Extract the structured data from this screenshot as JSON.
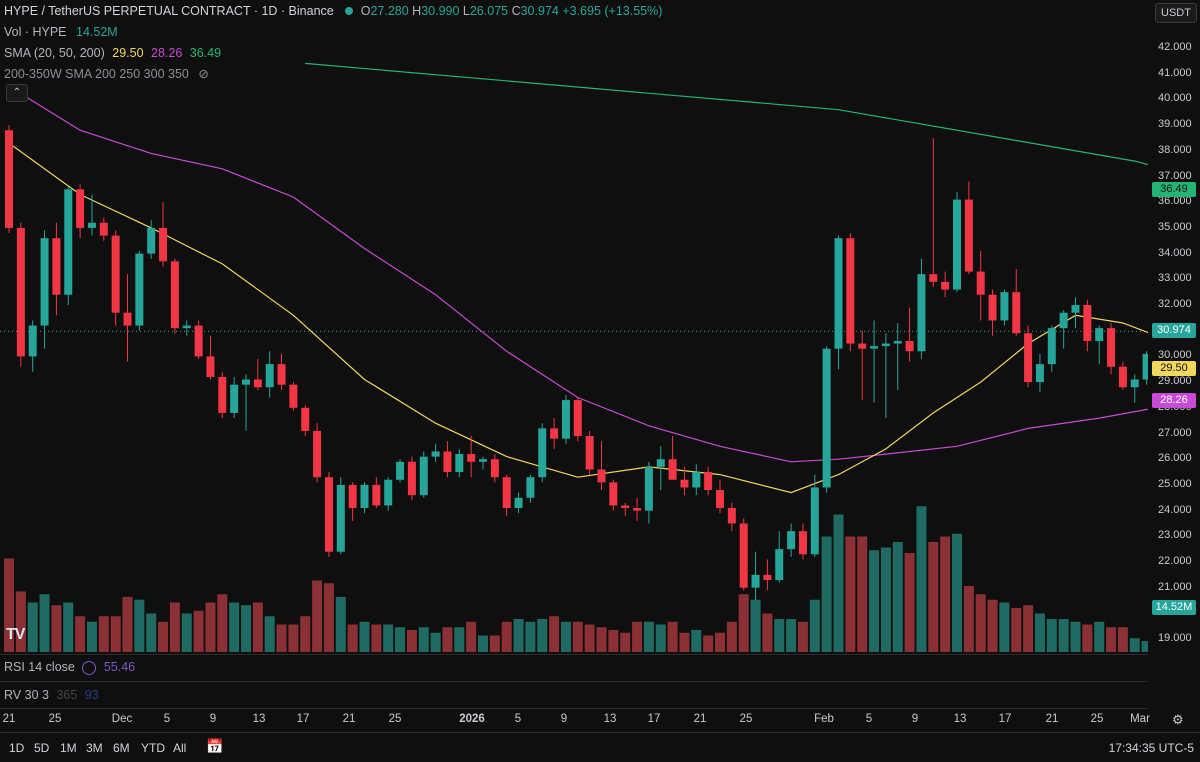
{
  "header": {
    "title": "HYPE / TetherUS PERPETUAL CONTRACT · 1D · Binance",
    "open_label": "O",
    "open": "27.280",
    "high_label": "H",
    "high": "30.990",
    "low_label": "L",
    "low": "26.075",
    "close_label": "C",
    "close": "30.974",
    "change": "+3.695 (+13.55%)",
    "currency": "USDT"
  },
  "indicators": {
    "vol_label": "Vol · HYPE",
    "vol_value": "14.52M",
    "sma_label": "SMA (20, 50, 200)",
    "sma20": "29.50",
    "sma50": "28.26",
    "sma200": "36.49",
    "sma_hidden_label": "200-350W SMA 200 250 300 350",
    "rsi_label": "RSI 14 close",
    "rsi_value": "55.46",
    "rv_label": "RV 30 3",
    "rv_extra": "365",
    "rv_extra2": "93"
  },
  "colors": {
    "up": "#26a69a",
    "down": "#f23645",
    "sma20": "#f0d75e",
    "sma50": "#c94ad6",
    "sma200": "#22b573"
  },
  "price_axis": {
    "ticks": [
      "42.000",
      "41.000",
      "40.000",
      "39.000",
      "38.000",
      "37.000",
      "36.000",
      "35.000",
      "34.000",
      "33.000",
      "32.000",
      "31.000",
      "30.000",
      "29.000",
      "28.000",
      "27.000",
      "26.000",
      "25.000",
      "24.000",
      "23.000",
      "22.000",
      "21.000",
      "20.000",
      "19.000"
    ],
    "last_price": "30.974",
    "sma20_badge": "29.50",
    "sma50_badge": "28.26",
    "sma200_badge": "36.49",
    "vol_badge": "14.52M"
  },
  "time_axis": {
    "labels": [
      "21",
      "25",
      "Dec",
      "5",
      "9",
      "13",
      "17",
      "21",
      "25",
      "2026",
      "5",
      "9",
      "13",
      "17",
      "21",
      "25",
      "Feb",
      "5",
      "9",
      "13",
      "17",
      "21",
      "25",
      "Mar"
    ],
    "timezone": "17:34:35 UTC-5"
  },
  "timeframes": [
    "1D",
    "5D",
    "1M",
    "3M",
    "6M",
    "YTD",
    "All"
  ],
  "logo": "TV",
  "chart_data": {
    "type": "candlestick",
    "interval": "1D",
    "ylim": [
      18.5,
      42.5
    ],
    "ohlc": [
      [
        38.8,
        39.0,
        34.8,
        35.0
      ],
      [
        35.0,
        35.2,
        29.6,
        30.0
      ],
      [
        30.0,
        31.4,
        29.4,
        31.2
      ],
      [
        31.2,
        34.9,
        30.3,
        34.6
      ],
      [
        34.6,
        35.2,
        31.6,
        32.4
      ],
      [
        32.4,
        36.6,
        32.0,
        36.5
      ],
      [
        36.5,
        36.7,
        34.6,
        35.0
      ],
      [
        35.0,
        36.3,
        34.7,
        35.2
      ],
      [
        35.2,
        35.4,
        34.5,
        34.7
      ],
      [
        34.7,
        34.9,
        31.2,
        31.7
      ],
      [
        31.7,
        33.2,
        29.8,
        31.2
      ],
      [
        31.2,
        34.1,
        31.0,
        34.0
      ],
      [
        34.0,
        35.3,
        33.8,
        35.0
      ],
      [
        35.0,
        36.0,
        33.5,
        33.7
      ],
      [
        33.7,
        33.8,
        30.9,
        31.1
      ],
      [
        31.1,
        31.4,
        30.8,
        31.2
      ],
      [
        31.2,
        31.4,
        29.9,
        30.0
      ],
      [
        30.0,
        30.8,
        29.1,
        29.2
      ],
      [
        29.2,
        29.4,
        27.6,
        27.8
      ],
      [
        27.8,
        29.2,
        27.6,
        28.9
      ],
      [
        28.9,
        29.3,
        27.1,
        29.1
      ],
      [
        29.1,
        29.9,
        28.7,
        28.8
      ],
      [
        28.8,
        30.2,
        28.4,
        29.7
      ],
      [
        29.7,
        30.1,
        28.7,
        28.9
      ],
      [
        28.9,
        29.0,
        27.9,
        28.0
      ],
      [
        28.0,
        28.1,
        26.9,
        27.1
      ],
      [
        27.1,
        27.4,
        25.1,
        25.3
      ],
      [
        25.3,
        25.5,
        22.2,
        22.4
      ],
      [
        22.4,
        25.3,
        22.3,
        25.0
      ],
      [
        25.0,
        25.1,
        23.6,
        24.1
      ],
      [
        24.1,
        25.1,
        23.9,
        25.0
      ],
      [
        25.0,
        25.3,
        24.1,
        24.2
      ],
      [
        24.2,
        25.3,
        24.0,
        25.2
      ],
      [
        25.2,
        26.0,
        25.1,
        25.9
      ],
      [
        25.9,
        26.1,
        24.4,
        24.6
      ],
      [
        24.6,
        26.3,
        24.5,
        26.1
      ],
      [
        26.1,
        26.6,
        25.9,
        26.3
      ],
      [
        26.3,
        26.7,
        25.3,
        25.5
      ],
      [
        25.5,
        26.4,
        25.3,
        26.2
      ],
      [
        26.2,
        26.9,
        25.3,
        25.9
      ],
      [
        25.9,
        26.1,
        25.6,
        26.0
      ],
      [
        26.0,
        26.2,
        25.1,
        25.3
      ],
      [
        25.3,
        25.4,
        23.8,
        24.1
      ],
      [
        24.1,
        24.7,
        23.9,
        24.5
      ],
      [
        24.5,
        25.4,
        24.3,
        25.3
      ],
      [
        25.3,
        27.4,
        25.1,
        27.2
      ],
      [
        27.2,
        27.6,
        26.4,
        26.8
      ],
      [
        26.8,
        28.5,
        26.6,
        28.3
      ],
      [
        28.3,
        28.4,
        26.7,
        26.9
      ],
      [
        26.9,
        27.1,
        25.4,
        25.6
      ],
      [
        25.6,
        26.7,
        24.8,
        25.1
      ],
      [
        25.1,
        25.2,
        24.0,
        24.2
      ],
      [
        24.2,
        24.3,
        23.8,
        24.1
      ],
      [
        24.1,
        24.5,
        23.6,
        24.0
      ],
      [
        24.0,
        25.9,
        23.5,
        25.7
      ],
      [
        25.7,
        26.5,
        24.8,
        26.0
      ],
      [
        26.0,
        26.9,
        25.4,
        25.2
      ],
      [
        25.2,
        25.7,
        24.6,
        24.9
      ],
      [
        24.9,
        25.8,
        24.6,
        25.5
      ],
      [
        25.5,
        25.7,
        24.6,
        24.8
      ],
      [
        24.8,
        25.2,
        23.9,
        24.1
      ],
      [
        24.1,
        24.3,
        23.2,
        23.5
      ],
      [
        23.5,
        23.7,
        20.9,
        21.0
      ],
      [
        21.0,
        22.4,
        20.5,
        21.5
      ],
      [
        21.5,
        22.1,
        20.9,
        21.3
      ],
      [
        21.3,
        23.2,
        21.2,
        22.5
      ],
      [
        22.5,
        23.5,
        22.2,
        23.2
      ],
      [
        23.2,
        23.5,
        22.1,
        22.3
      ],
      [
        22.3,
        25.4,
        22.2,
        24.9
      ],
      [
        24.9,
        30.4,
        24.7,
        30.3
      ],
      [
        30.3,
        34.7,
        29.5,
        34.6
      ],
      [
        34.6,
        34.8,
        30.2,
        30.5
      ],
      [
        30.5,
        31.0,
        28.3,
        30.3
      ],
      [
        30.3,
        31.4,
        28.2,
        30.4
      ],
      [
        30.4,
        30.9,
        27.6,
        30.5
      ],
      [
        30.5,
        31.3,
        28.7,
        30.6
      ],
      [
        30.6,
        31.9,
        29.8,
        30.2
      ],
      [
        30.2,
        33.8,
        29.9,
        33.2
      ],
      [
        33.2,
        38.5,
        32.7,
        32.9
      ],
      [
        32.9,
        33.3,
        32.3,
        32.6
      ],
      [
        32.6,
        36.4,
        32.5,
        36.1
      ],
      [
        36.1,
        36.8,
        33.2,
        33.3
      ],
      [
        33.3,
        34.1,
        31.4,
        32.4
      ],
      [
        32.4,
        32.6,
        30.8,
        31.4
      ],
      [
        31.4,
        32.6,
        31.2,
        32.5
      ],
      [
        32.5,
        33.4,
        30.8,
        30.9
      ],
      [
        30.9,
        31.2,
        28.8,
        29.0
      ],
      [
        29.0,
        30.1,
        28.6,
        29.7
      ],
      [
        29.7,
        31.2,
        29.4,
        31.1
      ],
      [
        31.1,
        31.8,
        30.3,
        31.7
      ],
      [
        31.7,
        32.3,
        31.1,
        32.0
      ],
      [
        32.0,
        32.2,
        30.2,
        30.6
      ],
      [
        30.6,
        31.2,
        29.7,
        31.1
      ],
      [
        31.1,
        31.3,
        29.3,
        29.6
      ],
      [
        29.6,
        29.8,
        28.7,
        28.8
      ],
      [
        28.8,
        29.3,
        28.2,
        29.1
      ],
      [
        29.1,
        30.2,
        28.9,
        30.1
      ],
      [
        30.1,
        30.4,
        29.6,
        29.9
      ],
      [
        29.9,
        30.1,
        28.8,
        29.2
      ],
      [
        29.2,
        29.3,
        26.1,
        26.4
      ],
      [
        26.4,
        27.3,
        25.7,
        27.0
      ],
      [
        27.0,
        28.3,
        26.3,
        27.8
      ],
      [
        27.8,
        28.2,
        27.3,
        28.0
      ],
      [
        28.0,
        28.3,
        27.1,
        27.3
      ],
      [
        27.3,
        31.0,
        26.1,
        30.974
      ]
    ],
    "volume": [
      3.4,
      2.2,
      1.8,
      2.1,
      1.7,
      1.8,
      1.3,
      1.1,
      1.3,
      1.3,
      2.0,
      1.9,
      1.4,
      1.1,
      1.8,
      1.4,
      1.5,
      1.8,
      2.1,
      1.8,
      1.7,
      1.8,
      1.3,
      1.0,
      1.0,
      1.3,
      2.6,
      2.5,
      2.0,
      1.0,
      1.1,
      1.0,
      1.0,
      0.9,
      0.8,
      0.9,
      0.7,
      0.9,
      0.9,
      1.1,
      0.6,
      0.6,
      1.1,
      1.2,
      1.1,
      1.2,
      1.3,
      1.1,
      1.1,
      1.0,
      0.9,
      0.8,
      0.7,
      1.1,
      1.1,
      1.0,
      1.1,
      0.7,
      0.8,
      0.6,
      0.7,
      1.1,
      2.1,
      1.9,
      1.4,
      1.2,
      1.2,
      1.1,
      1.9,
      4.2,
      5.0,
      4.2,
      4.2,
      3.7,
      3.8,
      4.0,
      3.6,
      5.3,
      4.0,
      4.2,
      4.3,
      2.4,
      2.1,
      1.9,
      1.8,
      1.6,
      1.7,
      1.4,
      1.2,
      1.2,
      1.1,
      1.0,
      1.1,
      0.9,
      0.9,
      0.5,
      0.4,
      2.0,
      1.3,
      1.4,
      1.3,
      1.2,
      1.8
    ],
    "sma20": [
      [
        0,
        38.3
      ],
      [
        6,
        36.3
      ],
      [
        12,
        35.0
      ],
      [
        18,
        33.6
      ],
      [
        24,
        31.6
      ],
      [
        30,
        29.1
      ],
      [
        36,
        27.4
      ],
      [
        42,
        26.1
      ],
      [
        48,
        25.3
      ],
      [
        54,
        25.7
      ],
      [
        60,
        25.4
      ],
      [
        66,
        24.7
      ],
      [
        70,
        25.4
      ],
      [
        74,
        26.4
      ],
      [
        78,
        27.8
      ],
      [
        82,
        29.0
      ],
      [
        86,
        30.5
      ],
      [
        90,
        31.6
      ],
      [
        94,
        31.3
      ],
      [
        98,
        30.6
      ],
      [
        102,
        29.8
      ],
      [
        104,
        29.5
      ]
    ],
    "sma50": [
      [
        0,
        40.5
      ],
      [
        6,
        38.8
      ],
      [
        12,
        37.9
      ],
      [
        18,
        37.3
      ],
      [
        24,
        36.2
      ],
      [
        30,
        34.2
      ],
      [
        36,
        32.4
      ],
      [
        42,
        30.2
      ],
      [
        48,
        28.4
      ],
      [
        54,
        27.3
      ],
      [
        60,
        26.5
      ],
      [
        66,
        25.9
      ],
      [
        70,
        26.0
      ],
      [
        74,
        26.2
      ],
      [
        80,
        26.5
      ],
      [
        86,
        27.2
      ],
      [
        92,
        27.6
      ],
      [
        98,
        28.1
      ],
      [
        104,
        28.26
      ]
    ],
    "sma200": [
      [
        25,
        41.4
      ],
      [
        40,
        40.8
      ],
      [
        55,
        40.2
      ],
      [
        70,
        39.6
      ],
      [
        85,
        38.4
      ],
      [
        95,
        37.6
      ],
      [
        104,
        36.5
      ]
    ],
    "last_price": 30.974
  }
}
